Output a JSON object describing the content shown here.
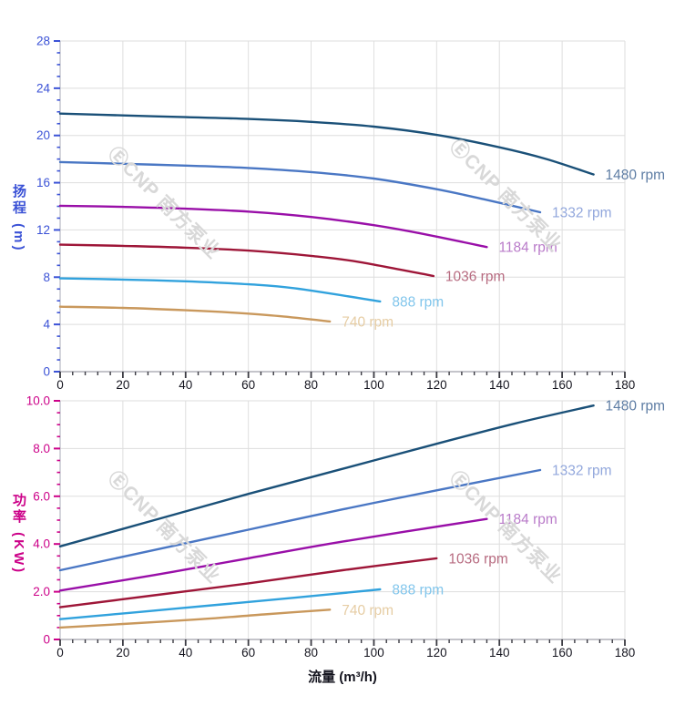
{
  "watermark": {
    "text": "ⒺCNP 南方泵业",
    "color": "#d8d8d8"
  },
  "style": {
    "grid_color": "#dedede",
    "y_axis_line_color": "#c6c7d0",
    "x_axis_line_color": "#b0b0b8",
    "x_tick_color": "#3a3a42",
    "x_tick_label_color": "#15151f",
    "head_axis_color": "#3b52d6",
    "power_axis_color": "#cc0088"
  },
  "chart_data": [
    {
      "type": "line",
      "name": "head-curve-chart",
      "title": "",
      "xlabel": "",
      "ylabel": "扬程 (m)",
      "xlim": [
        0,
        180
      ],
      "ylim": [
        0,
        28
      ],
      "x_major": 20,
      "x_minor": 4,
      "y_major": 4,
      "y_minor": 1,
      "x_tick_labels": [
        "0",
        "20",
        "40",
        "60",
        "80",
        "100",
        "120",
        "140",
        "160",
        "180"
      ],
      "y_tick_labels": [
        "0",
        "4",
        "8",
        "12",
        "16",
        "20",
        "24",
        "28"
      ],
      "axis_color": "#3b52d6",
      "series": [
        {
          "name": "1480 rpm",
          "color": "#1a5078",
          "label_color": "#5e7da4",
          "points": [
            [
              0,
              21.85
            ],
            [
              20,
              21.7
            ],
            [
              40,
              21.55
            ],
            [
              60,
              21.4
            ],
            [
              80,
              21.15
            ],
            [
              100,
              20.75
            ],
            [
              120,
              20.05
            ],
            [
              140,
              19.0
            ],
            [
              155,
              18.0
            ],
            [
              170,
              16.7
            ]
          ]
        },
        {
          "name": "1332 rpm",
          "color": "#4a77c4",
          "label_color": "#92a7dc",
          "points": [
            [
              0,
              17.75
            ],
            [
              20,
              17.6
            ],
            [
              40,
              17.45
            ],
            [
              60,
              17.25
            ],
            [
              80,
              16.9
            ],
            [
              100,
              16.35
            ],
            [
              120,
              15.45
            ],
            [
              135,
              14.6
            ],
            [
              153,
              13.5
            ]
          ]
        },
        {
          "name": "1184 rpm",
          "color": "#990fa8",
          "label_color": "#b97bc9",
          "points": [
            [
              0,
              14.05
            ],
            [
              20,
              13.95
            ],
            [
              40,
              13.8
            ],
            [
              60,
              13.55
            ],
            [
              80,
              13.1
            ],
            [
              100,
              12.4
            ],
            [
              115,
              11.7
            ],
            [
              136,
              10.55
            ]
          ]
        },
        {
          "name": "1036 rpm",
          "color": "#9e1638",
          "label_color": "#b76b80",
          "points": [
            [
              0,
              10.75
            ],
            [
              20,
              10.65
            ],
            [
              40,
              10.5
            ],
            [
              60,
              10.25
            ],
            [
              80,
              9.8
            ],
            [
              95,
              9.3
            ],
            [
              119,
              8.1
            ]
          ]
        },
        {
          "name": "888 rpm",
          "color": "#31a2dd",
          "label_color": "#82c6ec",
          "points": [
            [
              0,
              7.9
            ],
            [
              20,
              7.8
            ],
            [
              40,
              7.65
            ],
            [
              60,
              7.4
            ],
            [
              75,
              7.05
            ],
            [
              102,
              5.95
            ]
          ]
        },
        {
          "name": "740 rpm",
          "color": "#c9985c",
          "label_color": "#e6cda4",
          "points": [
            [
              0,
              5.5
            ],
            [
              20,
              5.4
            ],
            [
              40,
              5.2
            ],
            [
              55,
              5.0
            ],
            [
              70,
              4.7
            ],
            [
              86,
              4.25
            ]
          ]
        }
      ]
    },
    {
      "type": "line",
      "name": "power-curve-chart",
      "title": "",
      "xlabel": "流量 (m³/h)",
      "ylabel": "功率 (KW)",
      "xlim": [
        0,
        180
      ],
      "ylim": [
        0,
        10
      ],
      "x_major": 20,
      "x_minor": 4,
      "y_major": 2,
      "y_minor": 0.5,
      "x_tick_labels": [
        "0",
        "20",
        "40",
        "60",
        "80",
        "100",
        "120",
        "140",
        "160",
        "180"
      ],
      "y_tick_labels": [
        "0",
        "2.0",
        "4.0",
        "6.0",
        "8.0",
        "10.0"
      ],
      "axis_color": "#cc0088",
      "series": [
        {
          "name": "1480 rpm",
          "color": "#1a5078",
          "label_color": "#5e7da4",
          "points": [
            [
              0,
              3.9
            ],
            [
              30,
              5.0
            ],
            [
              60,
              6.1
            ],
            [
              90,
              7.15
            ],
            [
              120,
              8.2
            ],
            [
              145,
              9.05
            ],
            [
              170,
              9.8
            ]
          ]
        },
        {
          "name": "1332 rpm",
          "color": "#4a77c4",
          "label_color": "#92a7dc",
          "points": [
            [
              0,
              2.9
            ],
            [
              30,
              3.75
            ],
            [
              60,
              4.6
            ],
            [
              90,
              5.45
            ],
            [
              120,
              6.25
            ],
            [
              153,
              7.1
            ]
          ]
        },
        {
          "name": "1184 rpm",
          "color": "#990fa8",
          "label_color": "#b97bc9",
          "points": [
            [
              0,
              2.05
            ],
            [
              30,
              2.7
            ],
            [
              60,
              3.4
            ],
            [
              90,
              4.1
            ],
            [
              136,
              5.05
            ]
          ]
        },
        {
          "name": "1036 rpm",
          "color": "#9e1638",
          "label_color": "#b76b80",
          "points": [
            [
              0,
              1.35
            ],
            [
              30,
              1.85
            ],
            [
              60,
              2.35
            ],
            [
              90,
              2.9
            ],
            [
              120,
              3.4
            ]
          ]
        },
        {
          "name": "888 rpm",
          "color": "#31a2dd",
          "label_color": "#82c6ec",
          "points": [
            [
              0,
              0.85
            ],
            [
              25,
              1.15
            ],
            [
              50,
              1.45
            ],
            [
              75,
              1.75
            ],
            [
              102,
              2.1
            ]
          ]
        },
        {
          "name": "740 rpm",
          "color": "#c9985c",
          "label_color": "#e6cda4",
          "points": [
            [
              0,
              0.5
            ],
            [
              20,
              0.65
            ],
            [
              45,
              0.85
            ],
            [
              65,
              1.05
            ],
            [
              86,
              1.25
            ]
          ]
        }
      ]
    }
  ]
}
